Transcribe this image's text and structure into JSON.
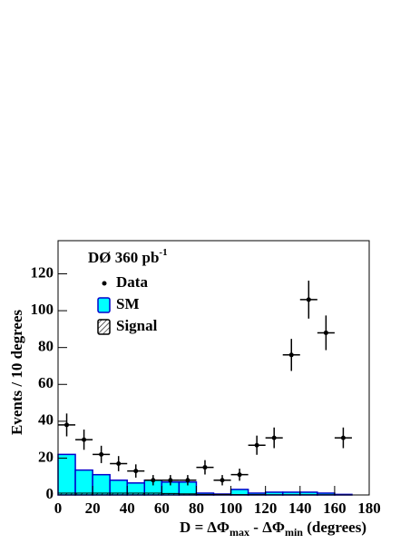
{
  "chart_data": {
    "type": "histogram",
    "annotation": {
      "text": "DØ 360 pb",
      "sup": "-1"
    },
    "ylabel": "Events / 10 degrees",
    "xlabel": [
      {
        "text": "D =",
        "sub": false
      },
      {
        "text": "ΔΦ",
        "sub": false
      },
      {
        "text": "max",
        "sub": true
      },
      {
        "text": " - ΔΦ",
        "sub": false
      },
      {
        "text": "min",
        "sub": true
      },
      {
        "text": " (degrees)",
        "sub": false
      }
    ],
    "bins": [
      0,
      10,
      20,
      30,
      40,
      50,
      60,
      70,
      80,
      90,
      100,
      110,
      120,
      130,
      140,
      150,
      160,
      170,
      180
    ],
    "xlim": [
      0,
      180
    ],
    "xticks": [
      0,
      20,
      40,
      60,
      80,
      100,
      120,
      140,
      160,
      180
    ],
    "ylim": [
      0,
      138
    ],
    "yticks": [
      0,
      20,
      40,
      60,
      80,
      100,
      120
    ],
    "legend": "top-left",
    "series": [
      {
        "name": "SM",
        "style": "fill",
        "color": "#00ffff",
        "edge": "#0000cc",
        "values": [
          22,
          13.5,
          11,
          8,
          6.5,
          8,
          7,
          7,
          1,
          0.5,
          3,
          1,
          1.5,
          1.5,
          1.5,
          1,
          0.3,
          0
        ]
      },
      {
        "name": "Signal",
        "style": "hatch",
        "color": "#000000",
        "values": [
          1,
          1,
          1,
          1,
          1,
          1,
          0.8,
          0.6,
          0.3,
          0.3,
          0.2,
          0.2,
          0.1,
          0.1,
          0.1,
          0.1,
          0,
          0
        ]
      },
      {
        "name": "Data",
        "style": "points",
        "color": "#000000",
        "values": [
          38,
          30,
          22,
          17,
          13,
          8,
          8,
          8,
          15,
          8,
          11,
          27,
          31,
          76,
          106,
          88,
          31,
          null
        ],
        "errors": [
          6.2,
          5.5,
          4.7,
          4.1,
          3.6,
          2.8,
          2.8,
          2.8,
          3.9,
          2.8,
          3.3,
          5.2,
          5.6,
          8.7,
          10.3,
          9.4,
          5.6,
          null
        ]
      }
    ]
  }
}
